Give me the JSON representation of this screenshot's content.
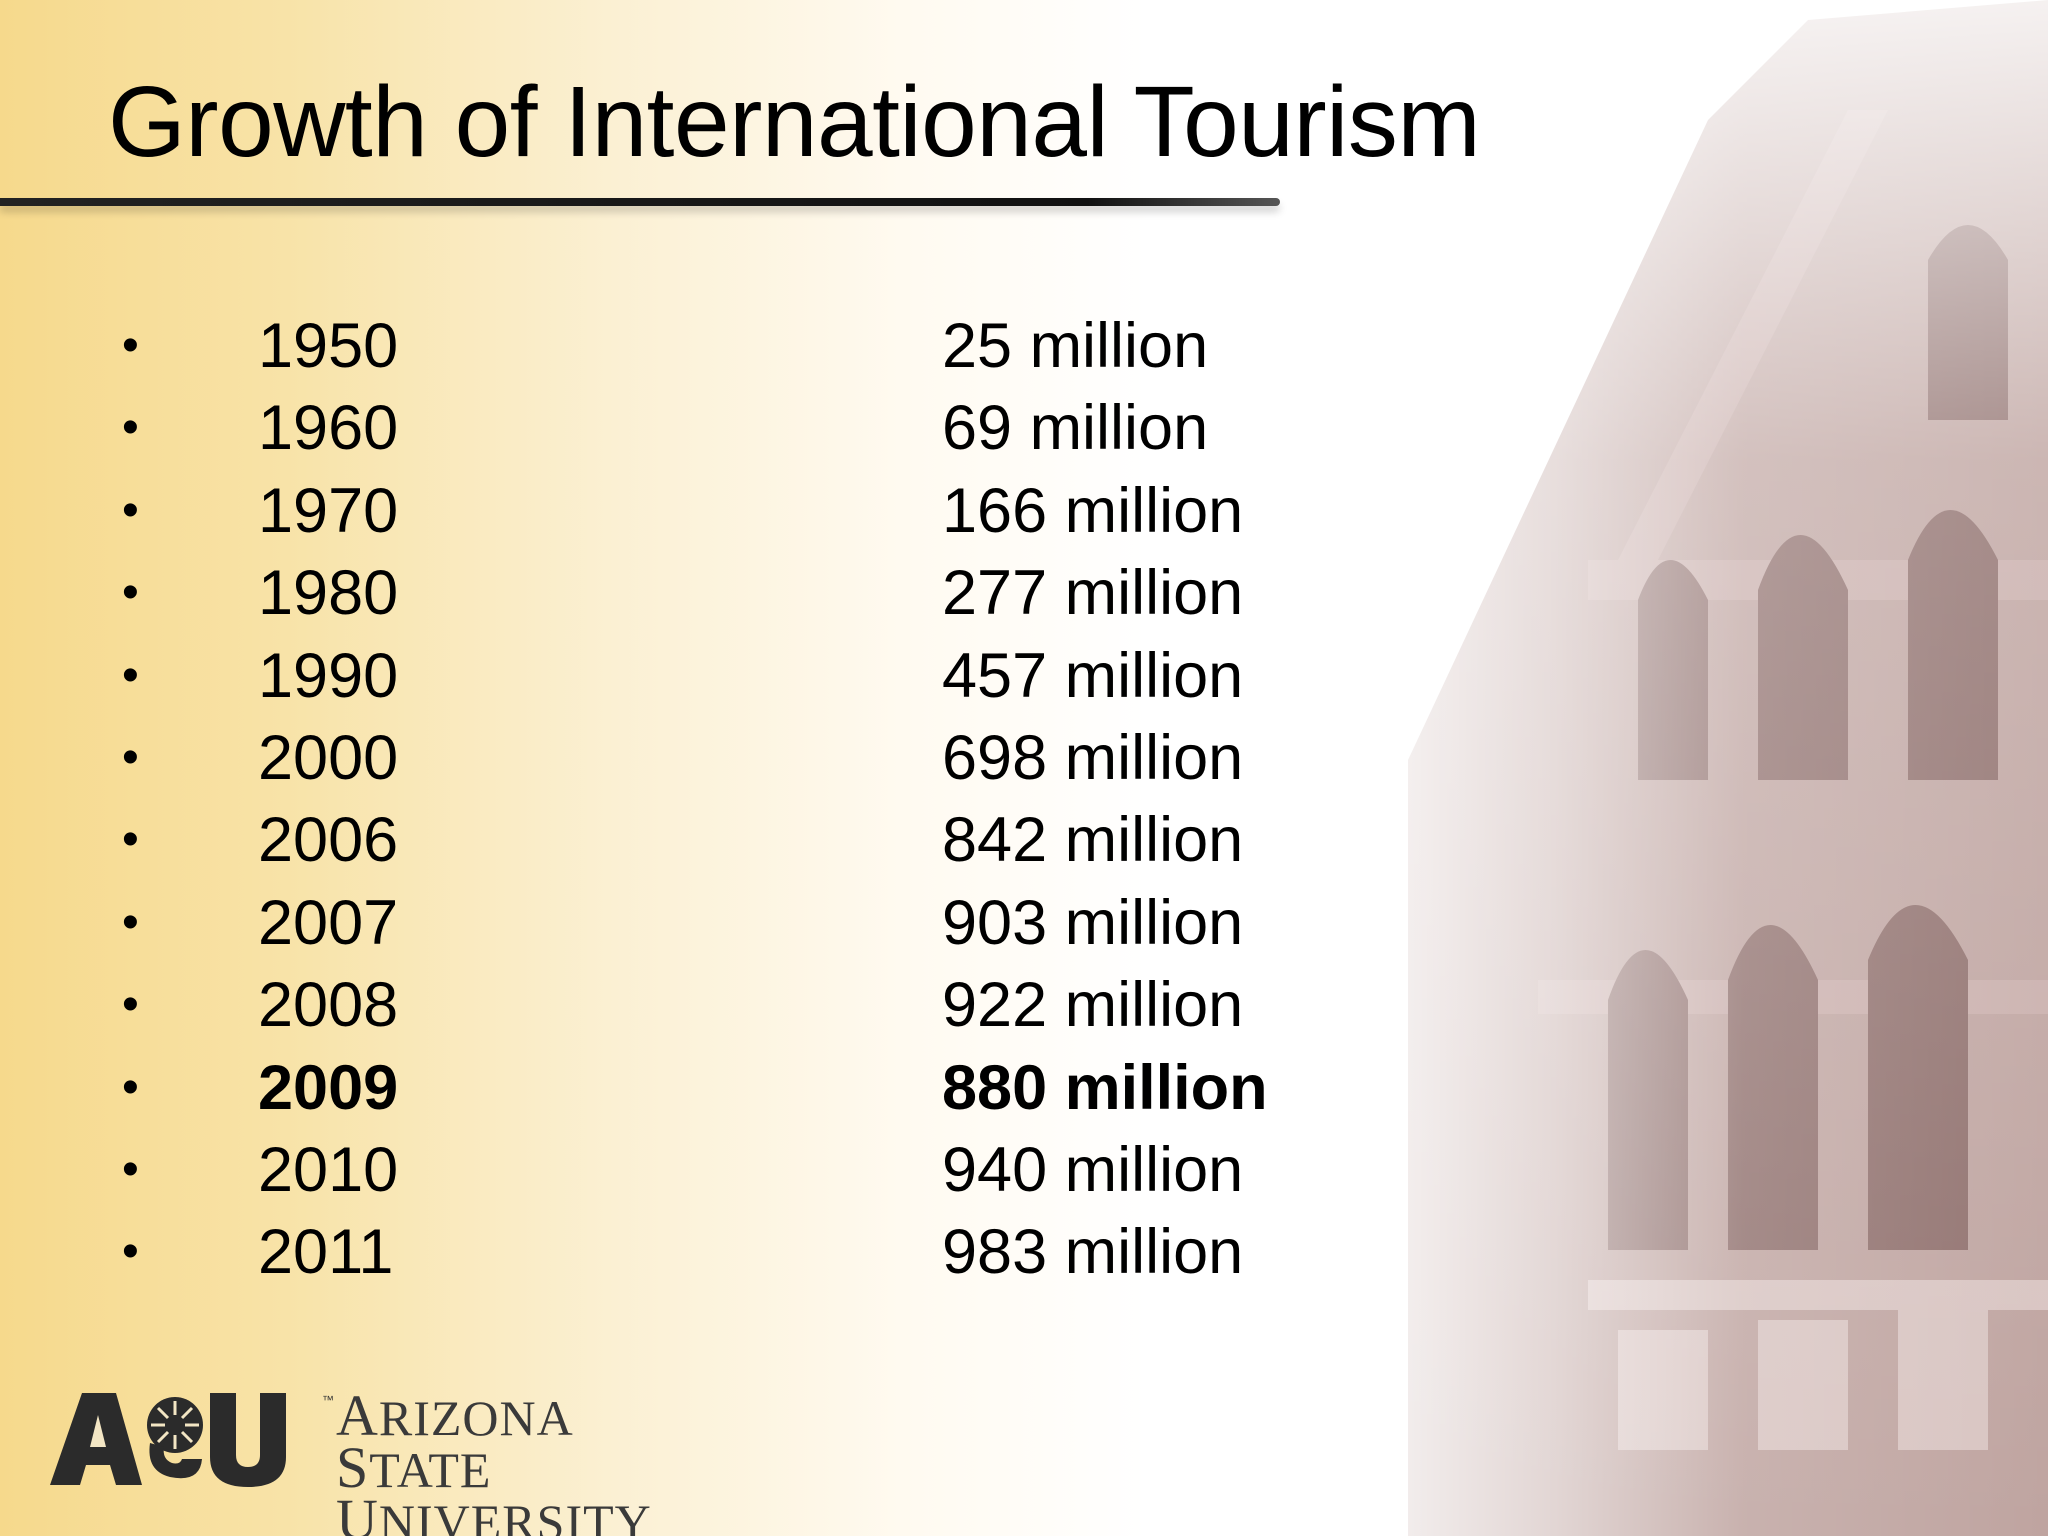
{
  "slide": {
    "title": "Growth of International Tourism",
    "rows": [
      {
        "year": "1950",
        "value": "25 million",
        "bold": false
      },
      {
        "year": "1960",
        "value": "69 million",
        "bold": false
      },
      {
        "year": "1970",
        "value": "166 million",
        "bold": false
      },
      {
        "year": "1980",
        "value": "277 million",
        "bold": false
      },
      {
        "year": "1990",
        "value": "457 million",
        "bold": false
      },
      {
        "year": "2000",
        "value": "698 million",
        "bold": false
      },
      {
        "year": "2006",
        "value": "842 million",
        "bold": false
      },
      {
        "year": "2007",
        "value": "903 million",
        "bold": false
      },
      {
        "year": "2008",
        "value": "922 million",
        "bold": false
      },
      {
        "year": "2009",
        "value": "880 million",
        "bold": true
      },
      {
        "year": "2010",
        "value": "940 million",
        "bold": false
      },
      {
        "year": "2011",
        "value": "983 million",
        "bold": false
      }
    ],
    "bullet": "•"
  },
  "logo": {
    "line1_initial": "A",
    "line1_rest": "RIZONA ",
    "line1_initial2": "S",
    "line1_rest2": "TATE",
    "line2_initial": "U",
    "line2_rest": "NIVERSITY",
    "trademark": "™"
  },
  "colors": {
    "gold": "#f6d98c",
    "text": "#000000",
    "building": "#b89a96"
  }
}
